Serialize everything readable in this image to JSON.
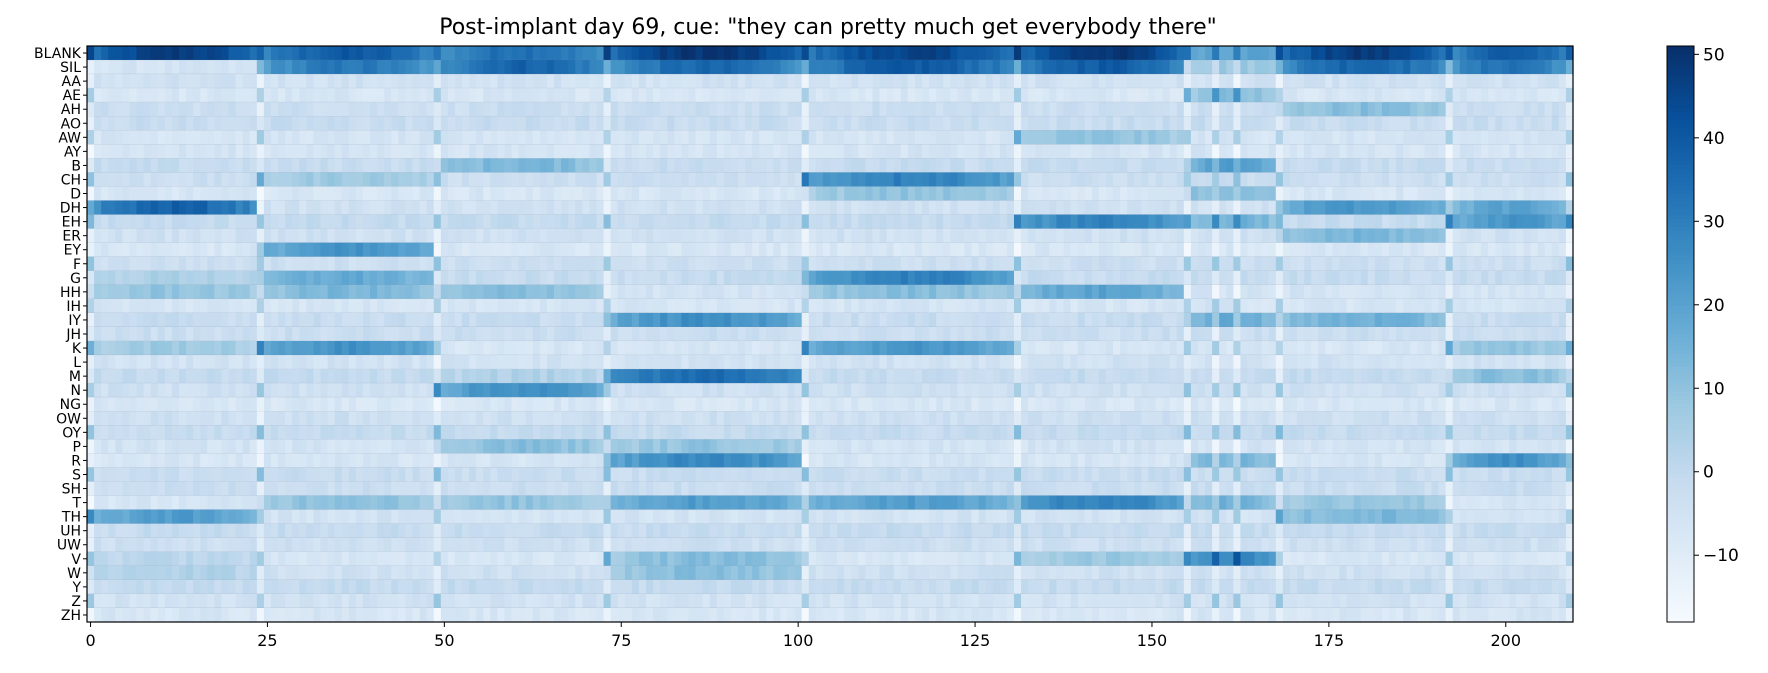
{
  "chart_data": {
    "type": "heatmap",
    "title": "Post-implant day 69, cue: \"they can pretty much get everybody there\"",
    "xlabel": "",
    "ylabel": "",
    "x_ticks": [
      0,
      25,
      50,
      75,
      100,
      125,
      150,
      175,
      200
    ],
    "xlim": [
      0,
      209
    ],
    "n_frames": 210,
    "row_labels": [
      "BLANK",
      "SIL",
      "AA",
      "AE",
      "AH",
      "AO",
      "AW",
      "AY",
      "B",
      "CH",
      "D",
      "DH",
      "EH",
      "ER",
      "EY",
      "F",
      "G",
      "HH",
      "IH",
      "IY",
      "JH",
      "K",
      "L",
      "M",
      "N",
      "NG",
      "OW",
      "OY",
      "P",
      "R",
      "S",
      "SH",
      "T",
      "TH",
      "UH",
      "UW",
      "V",
      "W",
      "Y",
      "Z",
      "ZH"
    ],
    "colorbar": {
      "colormap": "Blues",
      "vmin": -18,
      "vmax": 51,
      "ticks": [
        50,
        40,
        30,
        20,
        10,
        0,
        -10
      ],
      "tick_labels": [
        "50",
        "40",
        "30",
        "20",
        "10",
        "0",
        "−10"
      ]
    },
    "segment_boundaries": [
      0,
      24,
      49,
      73,
      101,
      131,
      155,
      159,
      162,
      168,
      192,
      209
    ],
    "segments": [
      {
        "start": 0,
        "end": 24,
        "levels": {
          "BLANK": 48,
          "DH": 38,
          "TH": 22,
          "K": 8,
          "HH": 10,
          "G": 5,
          "W": 4,
          "V": 2,
          "SIL": -6
        }
      },
      {
        "start": 24,
        "end": 49,
        "levels": {
          "BLANK": 40,
          "SIL": 32,
          "K": 25,
          "G": 18,
          "HH": 14,
          "EY": 24,
          "CH": 8,
          "T": 12,
          "SIL_peak": 35
        }
      },
      {
        "start": 49,
        "end": 73,
        "levels": {
          "SIL": 38,
          "BLANK": 35,
          "N": 26,
          "HH": 12,
          "B": 14,
          "P": 12,
          "T": 10,
          "M": 4
        }
      },
      {
        "start": 73,
        "end": 101,
        "levels": {
          "BLANK": 50,
          "SIL": 36,
          "IY": 26,
          "M": 36,
          "R": 28,
          "T": 22,
          "P": 10,
          "W": 12,
          "V": 12
        }
      },
      {
        "start": 101,
        "end": 131,
        "levels": {
          "SIL": 40,
          "BLANK": 46,
          "CH": 30,
          "G": 30,
          "K": 24,
          "T": 22,
          "HH": 12,
          "D": 10
        }
      },
      {
        "start": 131,
        "end": 155,
        "levels": {
          "BLANK": 50,
          "SIL": 40,
          "EH": 30,
          "HH": 20,
          "AW": 10,
          "V": 8,
          "T": 30
        }
      },
      {
        "start": 155,
        "end": 168,
        "levels": {
          "V": 28,
          "EH": 16,
          "R": 14,
          "B": 22,
          "AE": 12,
          "IY": 18,
          "D": 14,
          "T": 16
        }
      },
      {
        "start": 168,
        "end": 192,
        "levels": {
          "BLANK": 48,
          "SIL": 38,
          "DH": 24,
          "IY": 16,
          "ER": 14,
          "AH": 12,
          "T": 10,
          "TH": 14
        }
      },
      {
        "start": 192,
        "end": 209,
        "levels": {
          "SIL": 34,
          "BLANK": 40,
          "R": 26,
          "EH": 24,
          "DH": 20,
          "M": 12,
          "K": 10
        }
      }
    ]
  }
}
